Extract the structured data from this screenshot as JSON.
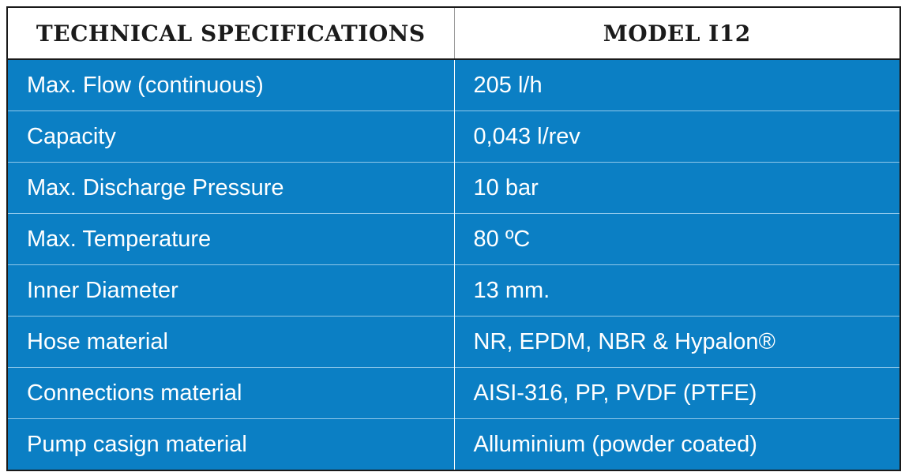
{
  "table": {
    "headers": {
      "spec": "TECHNICAL SPECIFICATIONS",
      "model": "MODEL I12"
    },
    "rows": [
      {
        "label": "Max. Flow (continuous)",
        "value": "205 l/h"
      },
      {
        "label": "Capacity",
        "value": "0,043 l/rev"
      },
      {
        "label": "Max. Discharge Pressure",
        "value": "10 bar"
      },
      {
        "label": "Max. Temperature",
        "value": "80 ºC"
      },
      {
        "label": "Inner Diameter",
        "value": "13 mm."
      },
      {
        "label": "Hose material",
        "value": "NR, EPDM, NBR & Hypalon®"
      },
      {
        "label": "Connections material",
        "value": "AISI-316, PP, PVDF (PTFE)"
      },
      {
        "label": "Pump casign material",
        "value": "Alluminium (powder coated)"
      }
    ]
  },
  "colors": {
    "row_background": "#0b7fc4",
    "header_background": "#ffffff",
    "header_text": "#1b1b1b",
    "row_text": "#ffffff"
  }
}
